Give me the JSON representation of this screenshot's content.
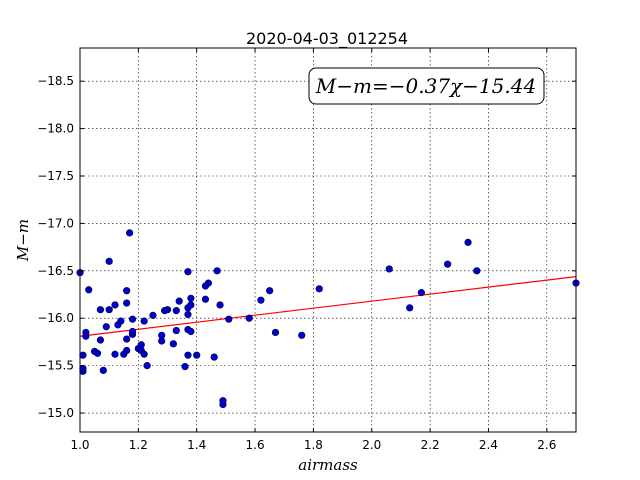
{
  "chart_data": {
    "type": "scatter",
    "title": "2020-04-03_012254",
    "xlabel": "airmass",
    "ylabel": "M−m",
    "xlim": [
      1.0,
      2.7
    ],
    "ylim": [
      -18.85,
      -14.8
    ],
    "ylim_note": "y axis inverted: -14.8 at top, -18.85 at bottom",
    "x_ticks": [
      "1.0",
      "1.2",
      "1.4",
      "1.6",
      "1.8",
      "2.0",
      "2.2",
      "2.4",
      "2.6"
    ],
    "y_ticks": [
      "−15.0",
      "−15.5",
      "−16.0",
      "−16.5",
      "−17.0",
      "−17.5",
      "−18.0",
      "−18.5"
    ],
    "grid": true,
    "annotation": "M−m=−0.37χ−15.44",
    "fit": {
      "slope": -0.37,
      "intercept": -15.44,
      "color": "#ff0000"
    },
    "marker_color": "#0000cc",
    "points": [
      [
        1.0,
        -16.48
      ],
      [
        1.01,
        -15.44
      ],
      [
        1.01,
        -15.47
      ],
      [
        1.01,
        -15.61
      ],
      [
        1.02,
        -15.81
      ],
      [
        1.02,
        -15.85
      ],
      [
        1.03,
        -16.3
      ],
      [
        1.05,
        -15.65
      ],
      [
        1.06,
        -15.63
      ],
      [
        1.07,
        -16.09
      ],
      [
        1.07,
        -15.77
      ],
      [
        1.08,
        -15.45
      ],
      [
        1.09,
        -15.91
      ],
      [
        1.1,
        -16.09
      ],
      [
        1.1,
        -16.6
      ],
      [
        1.12,
        -15.62
      ],
      [
        1.12,
        -16.14
      ],
      [
        1.13,
        -15.93
      ],
      [
        1.14,
        -15.97
      ],
      [
        1.15,
        -15.62
      ],
      [
        1.16,
        -15.66
      ],
      [
        1.16,
        -15.78
      ],
      [
        1.16,
        -16.16
      ],
      [
        1.16,
        -16.29
      ],
      [
        1.17,
        -16.9
      ],
      [
        1.18,
        -15.83
      ],
      [
        1.18,
        -15.86
      ],
      [
        1.18,
        -15.99
      ],
      [
        1.2,
        -15.68
      ],
      [
        1.21,
        -15.72
      ],
      [
        1.21,
        -15.66
      ],
      [
        1.22,
        -15.62
      ],
      [
        1.22,
        -15.97
      ],
      [
        1.23,
        -15.5
      ],
      [
        1.25,
        -16.03
      ],
      [
        1.28,
        -15.76
      ],
      [
        1.28,
        -15.82
      ],
      [
        1.29,
        -16.08
      ],
      [
        1.3,
        -16.09
      ],
      [
        1.32,
        -15.73
      ],
      [
        1.33,
        -15.87
      ],
      [
        1.33,
        -16.08
      ],
      [
        1.34,
        -16.18
      ],
      [
        1.36,
        -15.49
      ],
      [
        1.37,
        -15.61
      ],
      [
        1.37,
        -16.04
      ],
      [
        1.37,
        -16.11
      ],
      [
        1.37,
        -15.88
      ],
      [
        1.38,
        -15.86
      ],
      [
        1.38,
        -16.14
      ],
      [
        1.38,
        -16.21
      ],
      [
        1.37,
        -16.49
      ],
      [
        1.4,
        -15.61
      ],
      [
        1.43,
        -16.2
      ],
      [
        1.43,
        -16.34
      ],
      [
        1.44,
        -16.37
      ],
      [
        1.46,
        -15.59
      ],
      [
        1.47,
        -16.5
      ],
      [
        1.48,
        -16.14
      ],
      [
        1.49,
        -15.09
      ],
      [
        1.49,
        -15.13
      ],
      [
        1.51,
        -15.99
      ],
      [
        1.58,
        -16.0
      ],
      [
        1.62,
        -16.19
      ],
      [
        1.65,
        -16.29
      ],
      [
        1.67,
        -15.85
      ],
      [
        1.76,
        -15.82
      ],
      [
        1.82,
        -16.31
      ],
      [
        2.06,
        -16.52
      ],
      [
        2.13,
        -16.11
      ],
      [
        2.17,
        -16.27
      ],
      [
        2.26,
        -16.57
      ],
      [
        2.33,
        -16.8
      ],
      [
        2.36,
        -16.5
      ],
      [
        2.7,
        -16.37
      ]
    ]
  }
}
